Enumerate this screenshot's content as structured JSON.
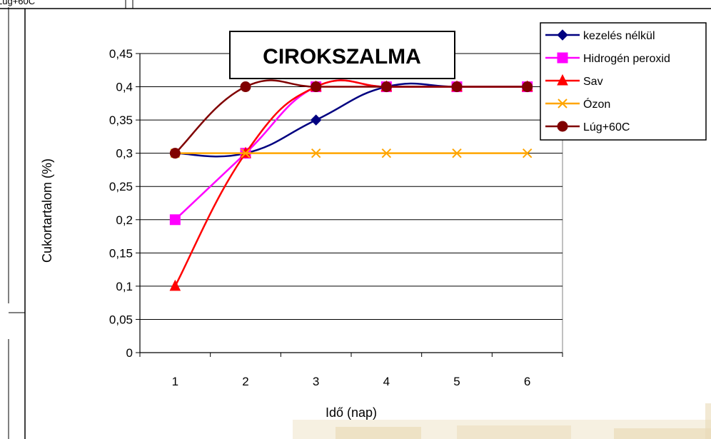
{
  "corner_label": "Lúg+60C",
  "chart_data": {
    "type": "line",
    "title": "CIROKSZALMA",
    "xlabel": "Idő (nap)",
    "ylabel": "Cukortartalom (%)",
    "categories": [
      "1",
      "2",
      "3",
      "4",
      "5",
      "6"
    ],
    "ylim": [
      0,
      0.45
    ],
    "ytick_labels": [
      "0",
      "0,05",
      "0,1",
      "0,15",
      "0,2",
      "0,25",
      "0,3",
      "0,35",
      "0,4",
      "0,45"
    ],
    "grid": true,
    "smooth": true,
    "legend_position": "top-right",
    "series": [
      {
        "name": "kezelés nélkül",
        "values": [
          0.3,
          0.3,
          0.35,
          0.4,
          0.4,
          0.4
        ],
        "color": "#000080",
        "marker": "diamond"
      },
      {
        "name": "Hidrogén peroxid",
        "values": [
          0.2,
          0.3,
          0.4,
          0.4,
          0.4,
          0.4
        ],
        "color": "#FF00FF",
        "marker": "square"
      },
      {
        "name": "Sav",
        "values": [
          0.1,
          0.3,
          0.4,
          0.4,
          0.4,
          0.4
        ],
        "color": "#FF0000",
        "marker": "triangle"
      },
      {
        "name": "Ózon",
        "values": [
          0.3,
          0.3,
          0.3,
          0.3,
          0.3,
          0.3
        ],
        "color": "#FFA500",
        "marker": "x",
        "smooth": false
      },
      {
        "name": "Lúg+60C",
        "values": [
          0.3,
          0.4,
          0.4,
          0.4,
          0.4,
          0.4
        ],
        "color": "#800000",
        "marker": "circle"
      }
    ]
  }
}
